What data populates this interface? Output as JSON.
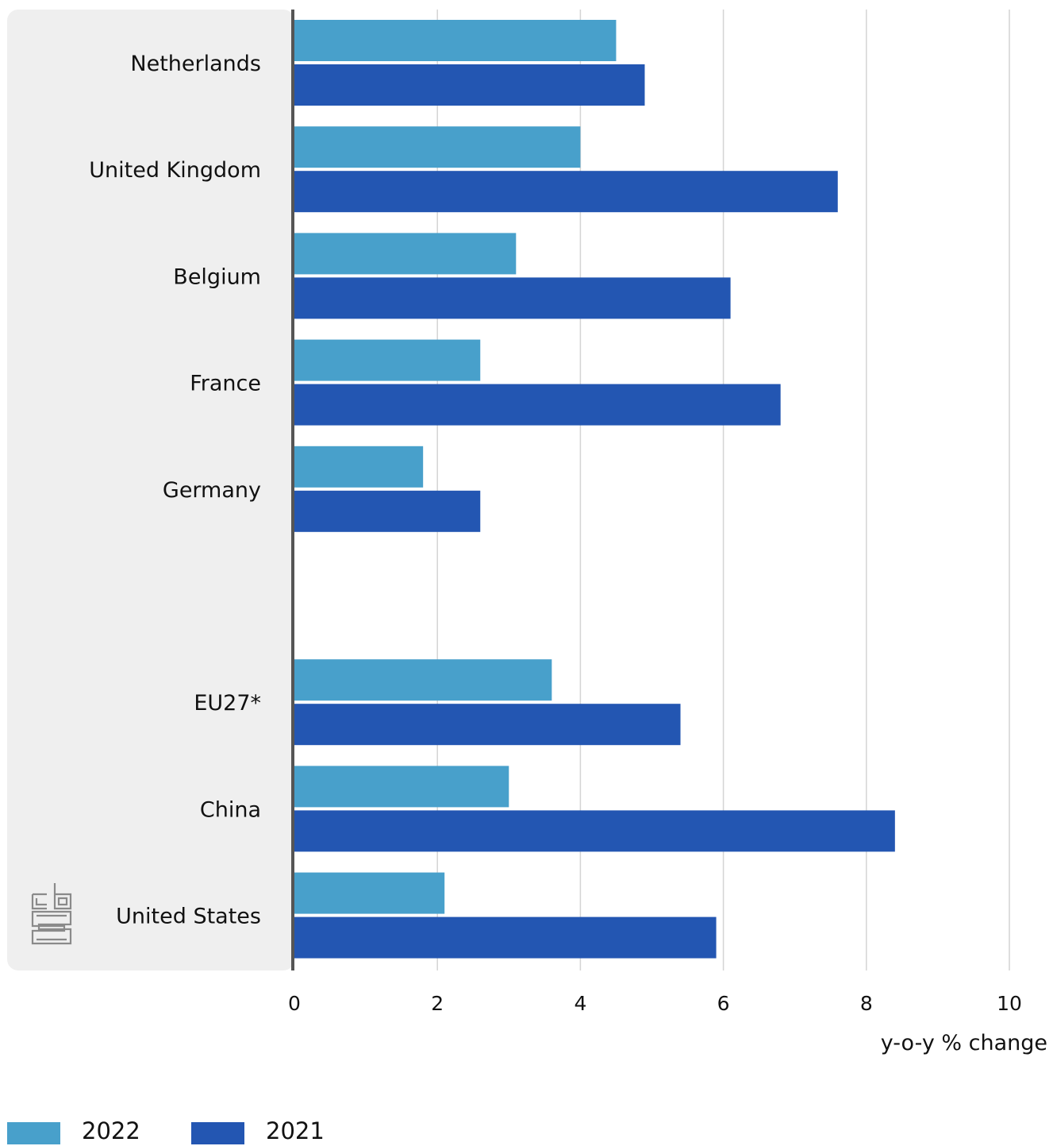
{
  "chart_data": {
    "type": "bar",
    "orientation": "horizontal",
    "categories": [
      "Netherlands",
      "United Kingdom",
      "Belgium",
      "France",
      "Germany",
      "",
      "EU27*",
      "China",
      "United States"
    ],
    "series": [
      {
        "name": "2022",
        "color": "#48a0cb",
        "values": [
          4.5,
          4.0,
          3.1,
          2.6,
          1.8,
          null,
          3.6,
          3.0,
          2.1
        ]
      },
      {
        "name": "2021",
        "color": "#2356b2",
        "values": [
          4.9,
          7.6,
          6.1,
          6.8,
          2.6,
          null,
          5.4,
          8.4,
          5.9
        ]
      }
    ],
    "xlabel": "y-o-y % change",
    "xlim": [
      0,
      10
    ],
    "xticks": [
      0,
      2,
      4,
      6,
      8,
      10
    ],
    "grid": "vertical",
    "legend_position": "bottom-left",
    "logo": "cbs-logo"
  }
}
